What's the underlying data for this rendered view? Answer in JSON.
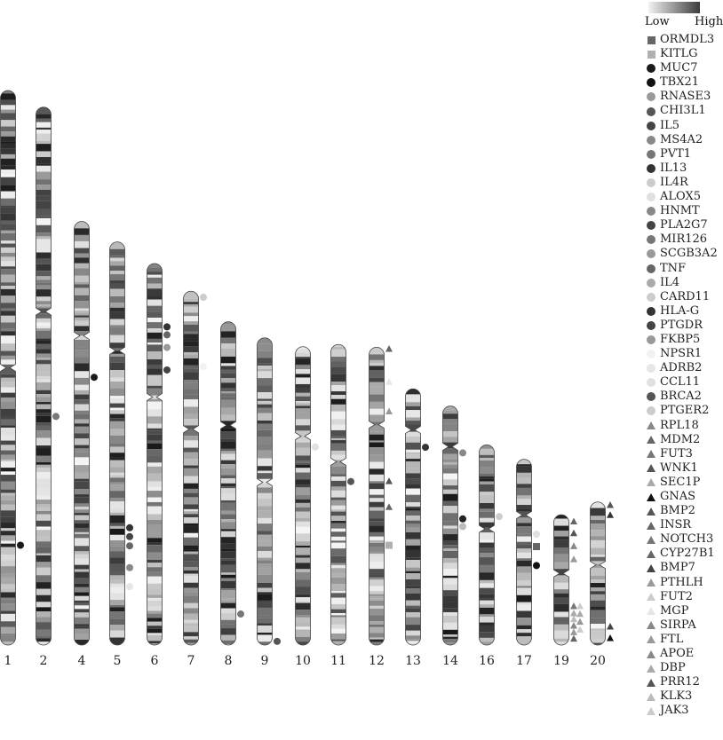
{
  "ideogram": {
    "chromosomes": [
      {
        "label": "1",
        "length": 1.0,
        "centromere": 0.5
      },
      {
        "label": "2",
        "length": 0.97,
        "centromere": 0.38
      },
      {
        "label": "4",
        "length": 0.764,
        "centromere": 0.27
      },
      {
        "label": "5",
        "length": 0.727,
        "centromere": 0.27
      },
      {
        "label": "6",
        "length": 0.688,
        "centromere": 0.35
      },
      {
        "label": "7",
        "length": 0.638,
        "centromere": 0.39
      },
      {
        "label": "8",
        "length": 0.583,
        "centromere": 0.32
      },
      {
        "label": "9",
        "length": 0.554,
        "centromere": 0.47
      },
      {
        "label": "10",
        "length": 0.538,
        "centromere": 0.3
      },
      {
        "label": "11",
        "length": 0.542,
        "centromere": 0.39
      },
      {
        "label": "12",
        "length": 0.537,
        "centromere": 0.26
      },
      {
        "label": "13",
        "length": 0.462,
        "centromere": 0.16
      },
      {
        "label": "14",
        "length": 0.431,
        "centromere": 0.17
      },
      {
        "label": "16",
        "length": 0.361,
        "centromere": 0.42
      },
      {
        "label": "17",
        "length": 0.335,
        "centromere": 0.3
      },
      {
        "label": "19",
        "length": 0.235,
        "centromere": 0.45
      },
      {
        "label": "20",
        "length": 0.258,
        "centromere": 0.44
      }
    ],
    "markers": [
      {
        "chr": "1",
        "pos": 0.82,
        "shape": "circle",
        "shade": "#1a1a1a",
        "col": 0
      },
      {
        "chr": "2",
        "pos": 0.575,
        "shape": "circle",
        "shade": "#777777",
        "col": 0
      },
      {
        "chr": "4",
        "pos": 0.368,
        "shape": "circle",
        "shade": "#1a1a1a",
        "col": 0
      },
      {
        "chr": "5",
        "pos": 0.709,
        "shape": "circle",
        "shade": "#333333",
        "col": 0
      },
      {
        "chr": "5",
        "pos": 0.731,
        "shape": "circle",
        "shade": "#444444",
        "col": 0
      },
      {
        "chr": "5",
        "pos": 0.754,
        "shape": "circle",
        "shade": "#666666",
        "col": 0
      },
      {
        "chr": "5",
        "pos": 0.808,
        "shape": "circle",
        "shade": "#888888",
        "col": 0
      },
      {
        "chr": "5",
        "pos": 0.855,
        "shape": "circle",
        "shade": "#e6e6e6",
        "col": 0
      },
      {
        "chr": "6",
        "pos": 0.166,
        "shape": "circle",
        "shade": "#333333",
        "col": 0
      },
      {
        "chr": "6",
        "pos": 0.187,
        "shape": "circle",
        "shade": "#666666",
        "col": 0
      },
      {
        "chr": "6",
        "pos": 0.22,
        "shape": "circle",
        "shade": "#999999",
        "col": 0
      },
      {
        "chr": "6",
        "pos": 0.279,
        "shape": "circle",
        "shade": "#444444",
        "col": 0
      },
      {
        "chr": "7",
        "pos": 0.017,
        "shape": "circle",
        "shade": "#cccccc",
        "col": 0
      },
      {
        "chr": "7",
        "pos": 0.213,
        "shape": "circle",
        "shade": "#f2f2f2",
        "col": 0
      },
      {
        "chr": "8",
        "pos": 0.904,
        "shape": "circle",
        "shade": "#777777",
        "col": 0
      },
      {
        "chr": "9",
        "pos": 0.988,
        "shape": "circle",
        "shade": "#555555",
        "col": 0
      },
      {
        "chr": "10",
        "pos": 0.336,
        "shape": "circle",
        "shade": "#e0e0e0",
        "col": 0
      },
      {
        "chr": "11",
        "pos": 0.456,
        "shape": "circle",
        "shade": "#555555",
        "col": 0
      },
      {
        "chr": "12",
        "pos": 0.005,
        "shape": "triangle",
        "shade": "#666666",
        "col": 0
      },
      {
        "chr": "12",
        "pos": 0.116,
        "shape": "triangle",
        "shade": "#e6e6e6",
        "col": 0
      },
      {
        "chr": "12",
        "pos": 0.215,
        "shape": "triangle",
        "shade": "#999999",
        "col": 0
      },
      {
        "chr": "12",
        "pos": 0.449,
        "shape": "triangle",
        "shade": "#555555",
        "col": 0
      },
      {
        "chr": "12",
        "pos": 0.536,
        "shape": "triangle",
        "shade": "#666666",
        "col": 0
      },
      {
        "chr": "12",
        "pos": 0.665,
        "shape": "square",
        "shade": "#b0b0b0",
        "col": 0
      },
      {
        "chr": "13",
        "pos": 0.228,
        "shape": "circle",
        "shade": "#333333",
        "col": 0
      },
      {
        "chr": "14",
        "pos": 0.196,
        "shape": "circle",
        "shade": "#888888",
        "col": 0
      },
      {
        "chr": "14",
        "pos": 0.472,
        "shape": "circle",
        "shade": "#222222",
        "col": 0
      },
      {
        "chr": "14",
        "pos": 0.504,
        "shape": "circle",
        "shade": "#bbbbbb",
        "col": 0
      },
      {
        "chr": "16",
        "pos": 0.358,
        "shape": "circle",
        "shade": "#cccccc",
        "col": 0
      },
      {
        "chr": "17",
        "pos": 0.403,
        "shape": "circle",
        "shade": "#e0e0e0",
        "col": 0
      },
      {
        "chr": "17",
        "pos": 0.47,
        "shape": "square",
        "shade": "#666666",
        "col": 0
      },
      {
        "chr": "17",
        "pos": 0.572,
        "shape": "circle",
        "shade": "#111111",
        "col": 0
      },
      {
        "chr": "19",
        "pos": 0.05,
        "shape": "triangle",
        "shade": "#666666",
        "col": 0
      },
      {
        "chr": "19",
        "pos": 0.14,
        "shape": "triangle",
        "shade": "#555555",
        "col": 0
      },
      {
        "chr": "19",
        "pos": 0.24,
        "shape": "triangle",
        "shade": "#888888",
        "col": 0
      },
      {
        "chr": "19",
        "pos": 0.34,
        "shape": "triangle",
        "shade": "#999999",
        "col": 0
      },
      {
        "chr": "19",
        "pos": 0.7,
        "shape": "triangle",
        "shade": "#777777",
        "col": 0
      },
      {
        "chr": "19",
        "pos": 0.755,
        "shape": "triangle",
        "shade": "#aaaaaa",
        "col": 0
      },
      {
        "chr": "19",
        "pos": 0.8,
        "shape": "triangle",
        "shade": "#bbbbbb",
        "col": 0
      },
      {
        "chr": "19",
        "pos": 0.85,
        "shape": "triangle",
        "shade": "#888888",
        "col": 0
      },
      {
        "chr": "19",
        "pos": 0.9,
        "shape": "triangle",
        "shade": "#999999",
        "col": 0
      },
      {
        "chr": "19",
        "pos": 0.95,
        "shape": "triangle",
        "shade": "#666666",
        "col": 0
      },
      {
        "chr": "19",
        "pos": 0.7,
        "shape": "triangle",
        "shade": "#cccccc",
        "col": 1
      },
      {
        "chr": "19",
        "pos": 0.76,
        "shape": "triangle",
        "shade": "#aaaaaa",
        "col": 1
      },
      {
        "chr": "19",
        "pos": 0.82,
        "shape": "triangle",
        "shade": "#999999",
        "col": 1
      },
      {
        "chr": "19",
        "pos": 0.88,
        "shape": "triangle",
        "shade": "#cccccc",
        "col": 1
      },
      {
        "chr": "20",
        "pos": 0.02,
        "shape": "triangle",
        "shade": "#555555",
        "col": 0
      },
      {
        "chr": "20",
        "pos": 0.09,
        "shape": "triangle",
        "shade": "#333333",
        "col": 0
      },
      {
        "chr": "20",
        "pos": 0.87,
        "shape": "triangle",
        "shade": "#444444",
        "col": 0
      },
      {
        "chr": "20",
        "pos": 0.95,
        "shape": "triangle",
        "shade": "#111111",
        "col": 0
      }
    ]
  },
  "legend": {
    "scale_low": "Low",
    "scale_high": "High",
    "genes": [
      {
        "name": "ORMDL3",
        "shape": "square",
        "shade": "#666666"
      },
      {
        "name": "KITLG",
        "shape": "square",
        "shade": "#b0b0b0"
      },
      {
        "name": "MUC7",
        "shape": "circle",
        "shade": "#1a1a1a"
      },
      {
        "name": "TBX21",
        "shape": "circle",
        "shade": "#111111"
      },
      {
        "name": "RNASE3",
        "shape": "circle",
        "shade": "#999999"
      },
      {
        "name": "CHI3L1",
        "shape": "circle",
        "shade": "#555555"
      },
      {
        "name": "IL5",
        "shape": "circle",
        "shade": "#444444"
      },
      {
        "name": "MS4A2",
        "shape": "circle",
        "shade": "#888888"
      },
      {
        "name": "PVT1",
        "shape": "circle",
        "shade": "#777777"
      },
      {
        "name": "IL13",
        "shape": "circle",
        "shade": "#333333"
      },
      {
        "name": "IL4R",
        "shape": "circle",
        "shade": "#cccccc"
      },
      {
        "name": "ALOX5",
        "shape": "circle",
        "shade": "#e0e0e0"
      },
      {
        "name": "HNMT",
        "shape": "circle",
        "shade": "#888888"
      },
      {
        "name": "PLA2G7",
        "shape": "circle",
        "shade": "#444444"
      },
      {
        "name": "MIR126",
        "shape": "circle",
        "shade": "#777777"
      },
      {
        "name": "SCGB3A2",
        "shape": "circle",
        "shade": "#999999"
      },
      {
        "name": "TNF",
        "shape": "circle",
        "shade": "#666666"
      },
      {
        "name": "IL4",
        "shape": "circle",
        "shade": "#aaaaaa"
      },
      {
        "name": "CARD11",
        "shape": "circle",
        "shade": "#cccccc"
      },
      {
        "name": "HLA-G",
        "shape": "circle",
        "shade": "#333333"
      },
      {
        "name": "PTGDR",
        "shape": "circle",
        "shade": "#444444"
      },
      {
        "name": "FKBP5",
        "shape": "circle",
        "shade": "#999999"
      },
      {
        "name": "NPSR1",
        "shape": "circle",
        "shade": "#f2f2f2"
      },
      {
        "name": "ADRB2",
        "shape": "circle",
        "shade": "#e6e6e6"
      },
      {
        "name": "CCL11",
        "shape": "circle",
        "shade": "#e0e0e0"
      },
      {
        "name": "BRCA2",
        "shape": "circle",
        "shade": "#555555"
      },
      {
        "name": "PTGER2",
        "shape": "circle",
        "shade": "#cccccc"
      },
      {
        "name": "RPL18",
        "shape": "triangle",
        "shade": "#888888"
      },
      {
        "name": "MDM2",
        "shape": "triangle",
        "shade": "#666666"
      },
      {
        "name": "FUT3",
        "shape": "triangle",
        "shade": "#777777"
      },
      {
        "name": "WNK1",
        "shape": "triangle",
        "shade": "#555555"
      },
      {
        "name": "SEC1P",
        "shape": "triangle",
        "shade": "#aaaaaa"
      },
      {
        "name": "GNAS",
        "shape": "triangle",
        "shade": "#111111"
      },
      {
        "name": "BMP2",
        "shape": "triangle",
        "shade": "#555555"
      },
      {
        "name": "INSR",
        "shape": "triangle",
        "shade": "#666666"
      },
      {
        "name": "NOTCH3",
        "shape": "triangle",
        "shade": "#777777"
      },
      {
        "name": "CYP27B1",
        "shape": "triangle",
        "shade": "#666666"
      },
      {
        "name": "BMP7",
        "shape": "triangle",
        "shade": "#444444"
      },
      {
        "name": "PTHLH",
        "shape": "triangle",
        "shade": "#999999"
      },
      {
        "name": "FUT2",
        "shape": "triangle",
        "shade": "#cccccc"
      },
      {
        "name": "MGP",
        "shape": "triangle",
        "shade": "#e6e6e6"
      },
      {
        "name": "SIRPA",
        "shape": "triangle",
        "shade": "#888888"
      },
      {
        "name": "FTL",
        "shape": "triangle",
        "shade": "#999999"
      },
      {
        "name": "APOE",
        "shape": "triangle",
        "shade": "#888888"
      },
      {
        "name": "DBP",
        "shape": "triangle",
        "shade": "#aaaaaa"
      },
      {
        "name": "PRR12",
        "shape": "triangle",
        "shade": "#555555"
      },
      {
        "name": "KLK3",
        "shape": "triangle",
        "shade": "#bbbbbb"
      },
      {
        "name": "JAK3",
        "shape": "triangle",
        "shade": "#cccccc"
      }
    ]
  }
}
